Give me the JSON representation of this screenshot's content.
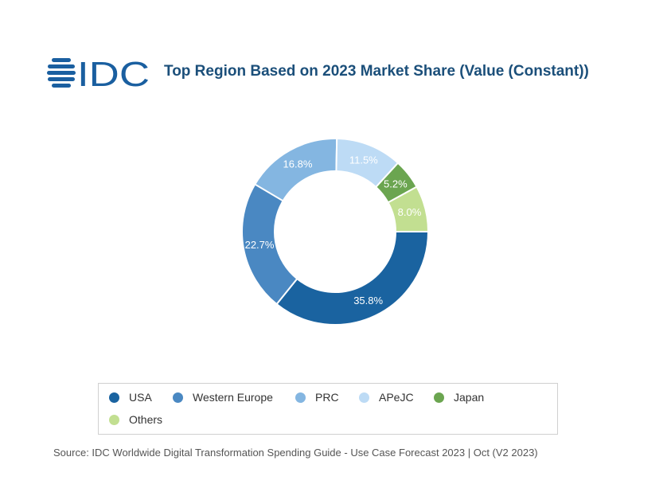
{
  "logo": {
    "text": "IDC",
    "color": "#1a5fa0"
  },
  "header": {
    "title": "Top Region Based on 2023 Market Share (Value (Constant))"
  },
  "chart_data": {
    "type": "pie",
    "title": "Top Region Based on 2023 Market Share (Value (Constant))",
    "categories": [
      "USA",
      "Western Europe",
      "PRC",
      "APeJC",
      "Japan",
      "Others"
    ],
    "values": [
      35.8,
      22.7,
      16.8,
      11.5,
      5.2,
      8.0
    ],
    "labels": [
      "35.8%",
      "22.7%",
      "16.8%",
      "11.5%",
      "5.2%",
      "8.0%"
    ],
    "colors": [
      "#1a63a0",
      "#4a88c2",
      "#84b6e1",
      "#bddbf5",
      "#6ba550",
      "#c2df91"
    ],
    "start_at": "3 o'clock, clockwise",
    "donut": true,
    "legend_position": "bottom"
  },
  "legend": {
    "items": [
      {
        "label": "USA",
        "color": "#1a63a0"
      },
      {
        "label": "Western Europe",
        "color": "#4a88c2"
      },
      {
        "label": "PRC",
        "color": "#84b6e1"
      },
      {
        "label": "APeJC",
        "color": "#bddbf5"
      },
      {
        "label": "Japan",
        "color": "#6ba550"
      },
      {
        "label": "Others",
        "color": "#c2df91"
      }
    ]
  },
  "footer": {
    "source": "Source: IDC Worldwide Digital Transformation Spending Guide - Use Case Forecast 2023 | Oct (V2 2023)"
  }
}
